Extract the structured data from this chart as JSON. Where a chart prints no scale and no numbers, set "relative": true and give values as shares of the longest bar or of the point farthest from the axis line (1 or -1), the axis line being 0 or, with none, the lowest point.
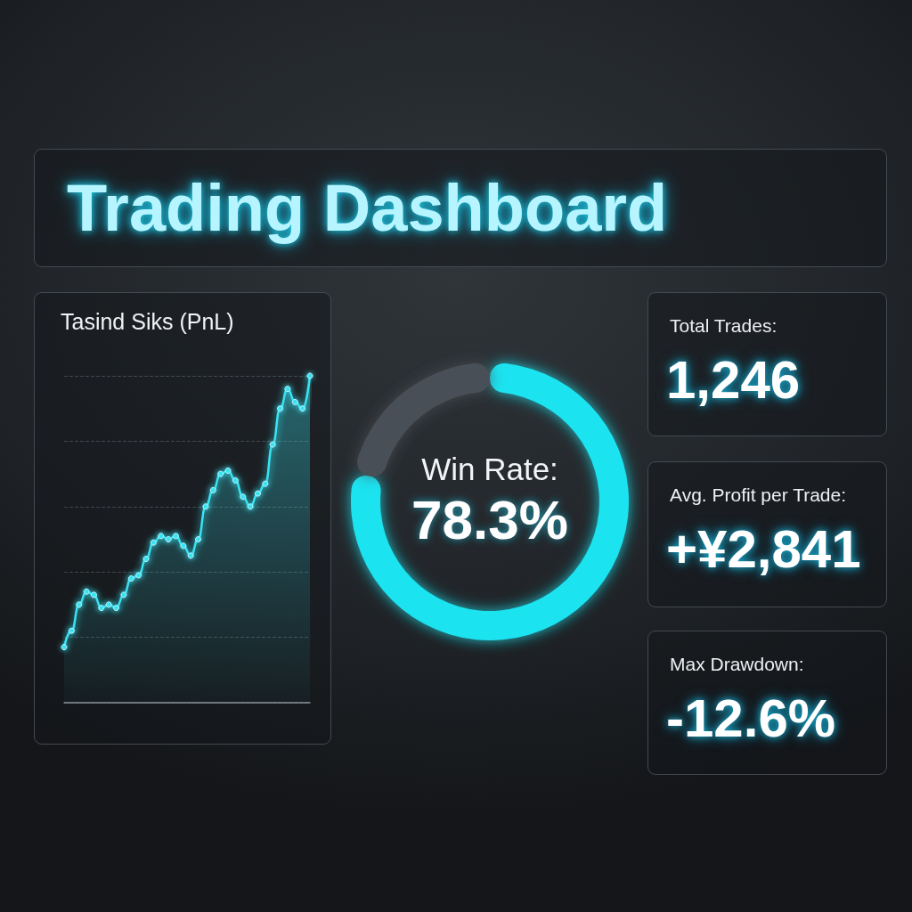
{
  "chart_data": [
    {
      "type": "other",
      "title": "Trading Dashboard"
    },
    {
      "type": "area",
      "title": "Tasind Siks (PnL)",
      "categories": [
        null,
        null,
        null,
        null,
        null,
        null,
        null,
        null,
        null,
        null,
        null,
        null,
        null,
        null,
        null,
        null,
        null,
        null,
        null,
        null,
        null,
        null,
        null,
        null,
        null,
        null,
        null,
        null,
        null,
        null,
        null,
        null,
        null,
        null
      ],
      "values": [
        0.17,
        0.22,
        0.3,
        0.34,
        0.33,
        0.29,
        0.3,
        0.29,
        0.33,
        0.38,
        0.39,
        0.44,
        0.49,
        0.51,
        0.5,
        0.51,
        0.48,
        0.45,
        0.5,
        0.6,
        0.65,
        0.7,
        0.71,
        0.68,
        0.63,
        0.6,
        0.64,
        0.67,
        0.79,
        0.9,
        0.96,
        0.92,
        0.9,
        1
      ],
      "color": "#38e3f2",
      "relative": true,
      "grid": "y",
      "marker": "circle"
    },
    {
      "type": "donut",
      "title": "Win Rate:",
      "categories": [
        null,
        null
      ],
      "values": [
        78.3,
        21.7
      ],
      "colors": [
        "#1ee3f0",
        "#4a5056"
      ],
      "annotations": [
        "78.3%"
      ]
    },
    {
      "type": "other",
      "title": "Total Trades:",
      "annotations": [
        "1,246"
      ]
    },
    {
      "type": "other",
      "title": "Avg. Profit per Trade:",
      "annotations": [
        "+¥2,841"
      ]
    },
    {
      "type": "other",
      "title": "Max Drawdown:",
      "annotations": [
        "-12.6%"
      ]
    }
  ]
}
